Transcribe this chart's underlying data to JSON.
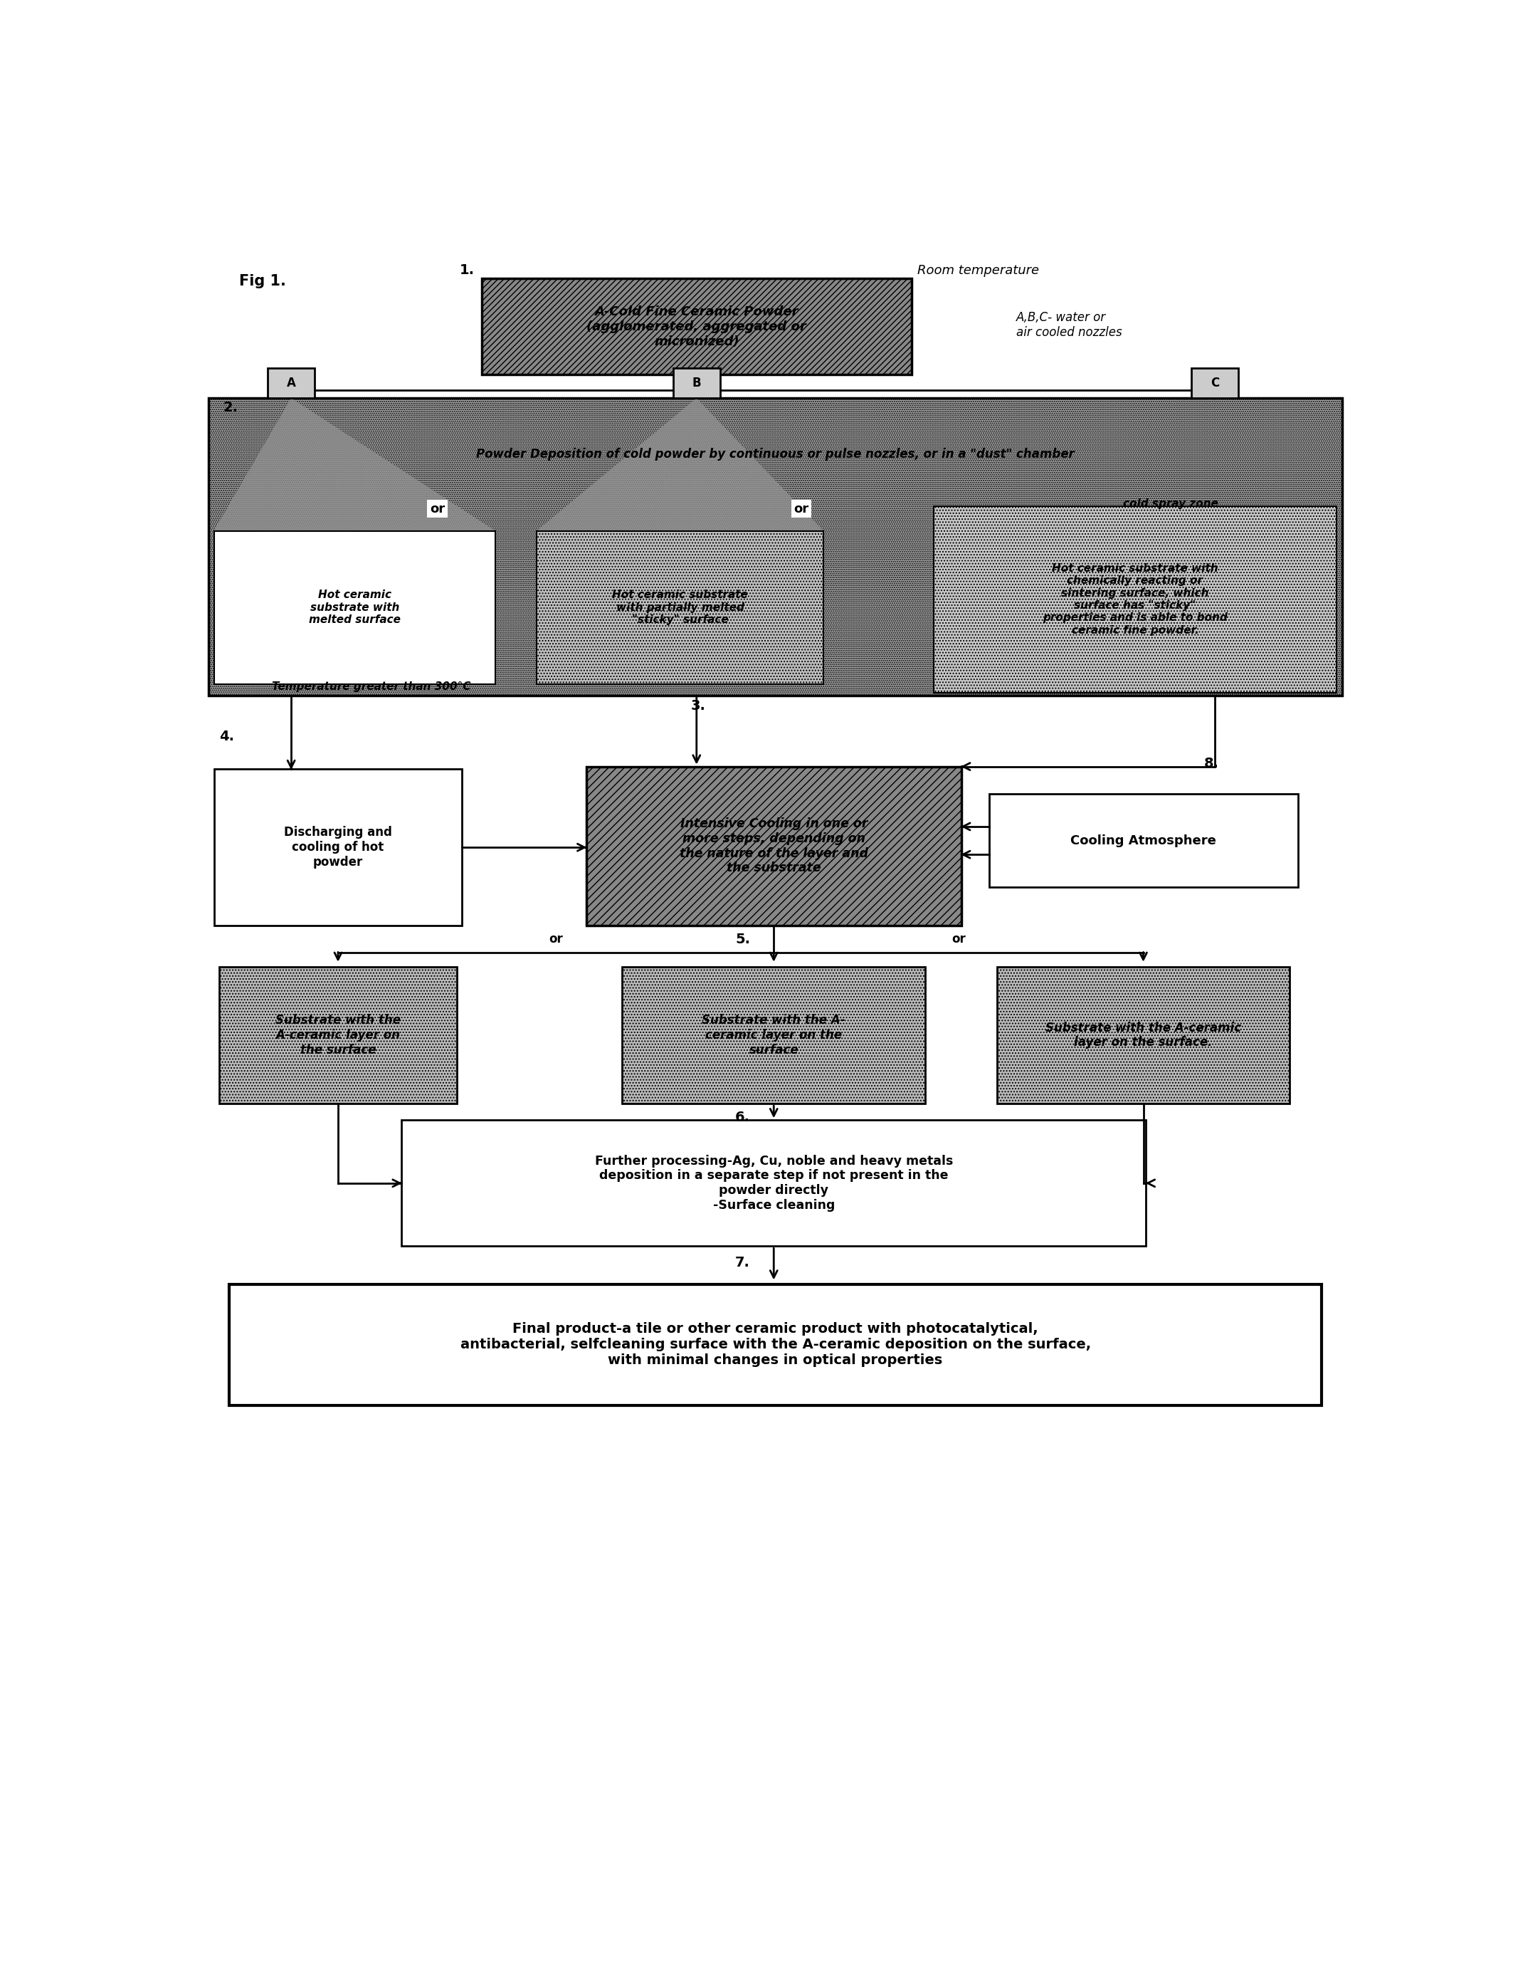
{
  "fig_label": "Fig 1.",
  "step1_label": "1.",
  "step1_text": "A-Cold Fine Ceramic Powder\n(agglomerated, aggregated or\nmicronized)",
  "room_temp_text": "Room temperature",
  "abc_text": "A,B,C- water or\nair cooled nozzles",
  "step2_label": "2.",
  "label_A": "A",
  "label_B": "B",
  "label_C": "C",
  "step2_text": "Powder Deposition of cold powder by continuous or pulse nozzles, or in a \"dust\" chamber",
  "or1_text": "or",
  "or2_text": "or",
  "cold_spray_text": "cold spray zone",
  "box_left_text": "Hot ceramic\nsubstrate with\nmelted surface",
  "box_mid_text": "Hot ceramic substrate\nwith partially melted\n\"sticky\" surface",
  "box_right_text": "Hot ceramic substrate with\nchemically reacting or\nsintering surface, which\nsurface has \"sticky\"\nproperties and is able to bond\nceramic fine powder.",
  "temp_text": "Temperature greater than 300°C",
  "step3_label": "3.",
  "step4_label": "4.",
  "step8_label": "8.",
  "cooling_box_text": "Intensive Cooling in one or\nmore steps, depending on\nthe nature of the layer and\nthe substrate",
  "discharge_box_text": "Discharging and\ncooling of hot\npowder",
  "cooling_atm_text": "Cooling Atmosphere",
  "step5_label": "5.",
  "or3_text": "or",
  "or4_text": "or",
  "substrate_left_text": "Substrate with the\nA-ceramic layer on\nthe surface",
  "substrate_mid_text": "Substrate with the A-\nceramic layer on the\nsurface",
  "substrate_right_text": "Substrate with the A-ceramic\nlayer on the surface.",
  "step6_label": "6.",
  "further_box_text": "Further processing-Ag, Cu, noble and heavy metals\ndeposition in a separate step if not present in the\npowder directly\n-Surface cleaning",
  "step7_label": "7.",
  "final_box_text": "Final product-a tile or other ceramic product with photocatalytical,\nantibacterial, selfcleaning surface with the A-ceramic deposition on the surface,\nwith minimal changes in optical properties",
  "bg_color": "#ffffff",
  "hatch_gray": "#999999",
  "mid_gray": "#aaaaaa",
  "light_gray": "#cccccc",
  "dark_box_fc": "#888888",
  "sub_box_fc": "#bbbbbb"
}
